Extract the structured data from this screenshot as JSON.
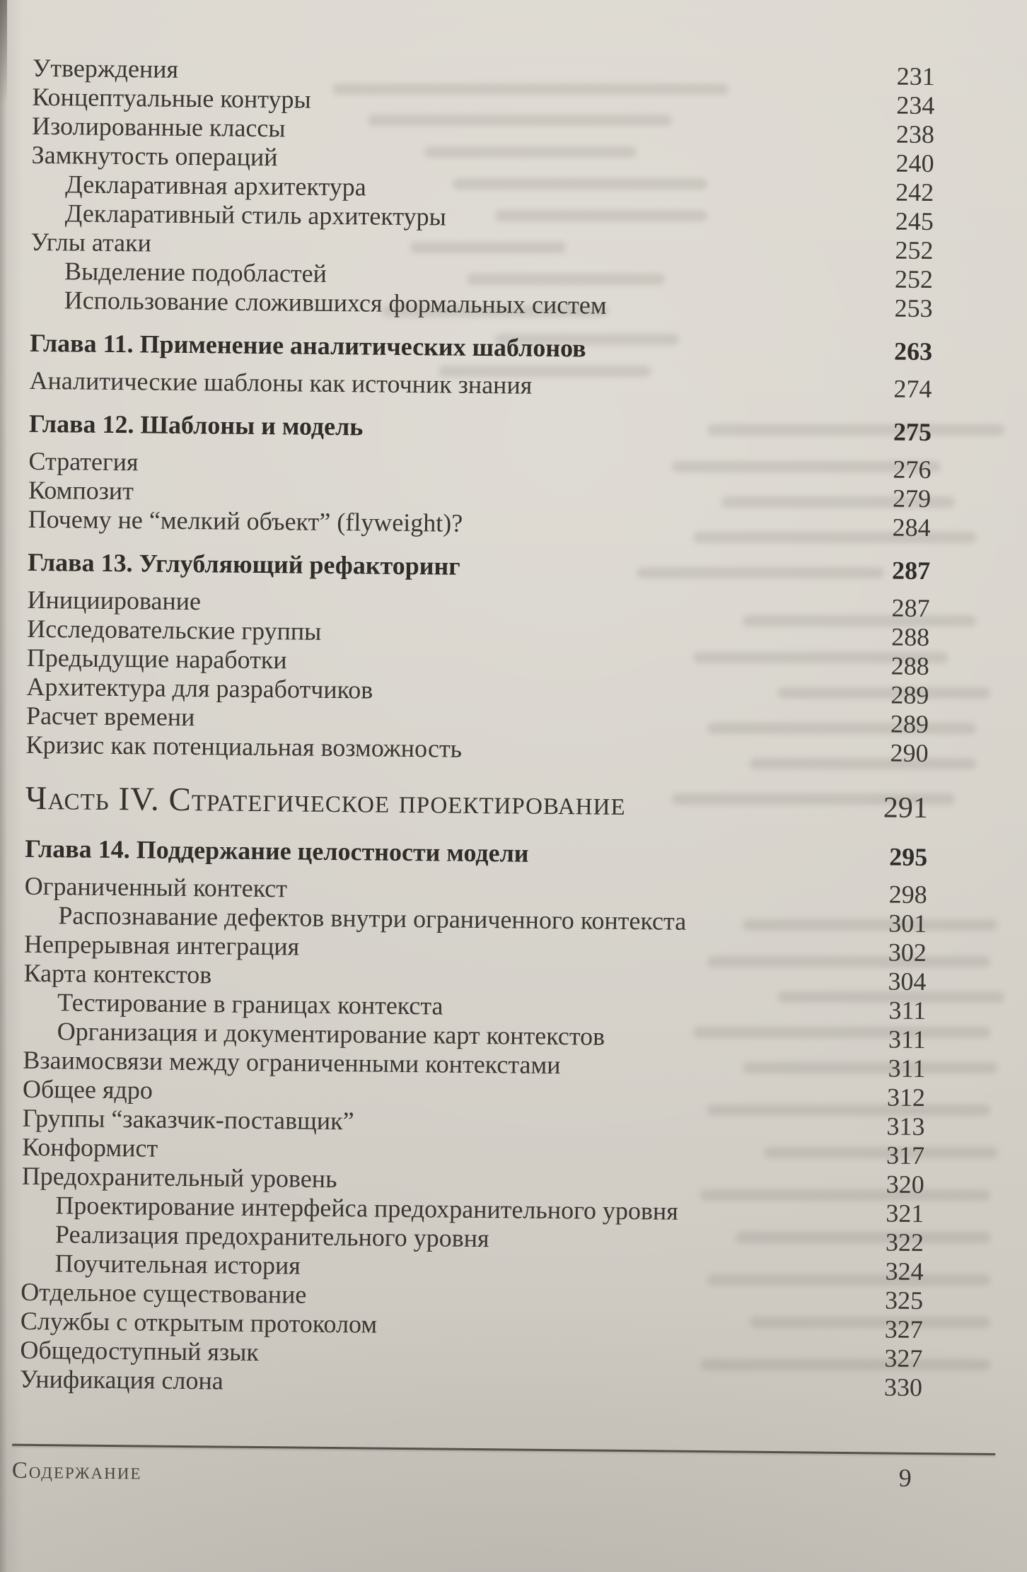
{
  "book_page": {
    "footer": {
      "label": "Содержание",
      "page_number": "9"
    },
    "toc": {
      "rows": [
        {
          "title": "Утверждения",
          "page": "231",
          "style": "entry"
        },
        {
          "title": "Концептуальные контуры",
          "page": "234",
          "style": "entry"
        },
        {
          "title": "Изолированные классы",
          "page": "238",
          "style": "entry"
        },
        {
          "title": "Замкнутость операций",
          "page": "240",
          "style": "entry"
        },
        {
          "title": "Декларативная архитектура",
          "page": "242",
          "style": "sub"
        },
        {
          "title": "Декларативный стиль архитектуры",
          "page": "245",
          "style": "sub"
        },
        {
          "title": "Углы атаки",
          "page": "252",
          "style": "entry"
        },
        {
          "title": "Выделение подобластей",
          "page": "252",
          "style": "sub"
        },
        {
          "title": "Использование сложившихся формальных систем",
          "page": "253",
          "style": "sub"
        },
        {
          "title": "Глава 11. Применение аналитических шаблонов",
          "page": "263",
          "style": "chapter"
        },
        {
          "title": "Аналитические шаблоны как источник знания",
          "page": "274",
          "style": "entry"
        },
        {
          "title": "Глава 12. Шаблоны и модель",
          "page": "275",
          "style": "chapter"
        },
        {
          "title": "Стратегия",
          "page": "276",
          "style": "entry"
        },
        {
          "title": "Композит",
          "page": "279",
          "style": "entry"
        },
        {
          "title": "Почему не “мелкий объект” (flyweight)?",
          "page": "284",
          "style": "entry"
        },
        {
          "title": "Глава 13. Углубляющий рефакторинг",
          "page": "287",
          "style": "chapter"
        },
        {
          "title": "Инициирование",
          "page": "287",
          "style": "entry"
        },
        {
          "title": "Исследовательские группы",
          "page": "288",
          "style": "entry"
        },
        {
          "title": "Предыдущие наработки",
          "page": "288",
          "style": "entry"
        },
        {
          "title": "Архитектура для разработчиков",
          "page": "289",
          "style": "entry"
        },
        {
          "title": "Расчет времени",
          "page": "289",
          "style": "entry"
        },
        {
          "title": "Кризис как потенциальная возможность",
          "page": "290",
          "style": "entry"
        },
        {
          "title": "Часть IV. Стратегическое проектирование",
          "page": "291",
          "style": "part"
        },
        {
          "title": "Глава 14. Поддержание целостности модели",
          "page": "295",
          "style": "chapter"
        },
        {
          "title": "Ограниченный контекст",
          "page": "298",
          "style": "entry"
        },
        {
          "title": "Распознавание дефектов внутри ограниченного контекста",
          "page": "301",
          "style": "sub"
        },
        {
          "title": "Непрерывная интеграция",
          "page": "302",
          "style": "entry"
        },
        {
          "title": "Карта контекстов",
          "page": "304",
          "style": "entry"
        },
        {
          "title": "Тестирование в границах контекста",
          "page": "311",
          "style": "sub"
        },
        {
          "title": "Организация и документирование карт контекстов",
          "page": "311",
          "style": "sub"
        },
        {
          "title": "Взаимосвязи между ограниченными контекстами",
          "page": "311",
          "style": "entry"
        },
        {
          "title": "Общее ядро",
          "page": "312",
          "style": "entry"
        },
        {
          "title": "Группы “заказчик-поставщик”",
          "page": "313",
          "style": "entry"
        },
        {
          "title": "Конформист",
          "page": "317",
          "style": "entry"
        },
        {
          "title": "Предохранительный уровень",
          "page": "320",
          "style": "entry"
        },
        {
          "title": "Проектирование интерфейса предохранительного уровня",
          "page": "321",
          "style": "sub"
        },
        {
          "title": "Реализация предохранительного уровня",
          "page": "322",
          "style": "sub"
        },
        {
          "title": "Поучительная история",
          "page": "324",
          "style": "sub"
        },
        {
          "title": "Отдельное существование",
          "page": "325",
          "style": "entry"
        },
        {
          "title": "Службы с открытым протоколом",
          "page": "327",
          "style": "entry"
        },
        {
          "title": "Общедоступный язык",
          "page": "327",
          "style": "entry"
        },
        {
          "title": "Унификация слона",
          "page": "330",
          "style": "entry"
        }
      ]
    }
  }
}
